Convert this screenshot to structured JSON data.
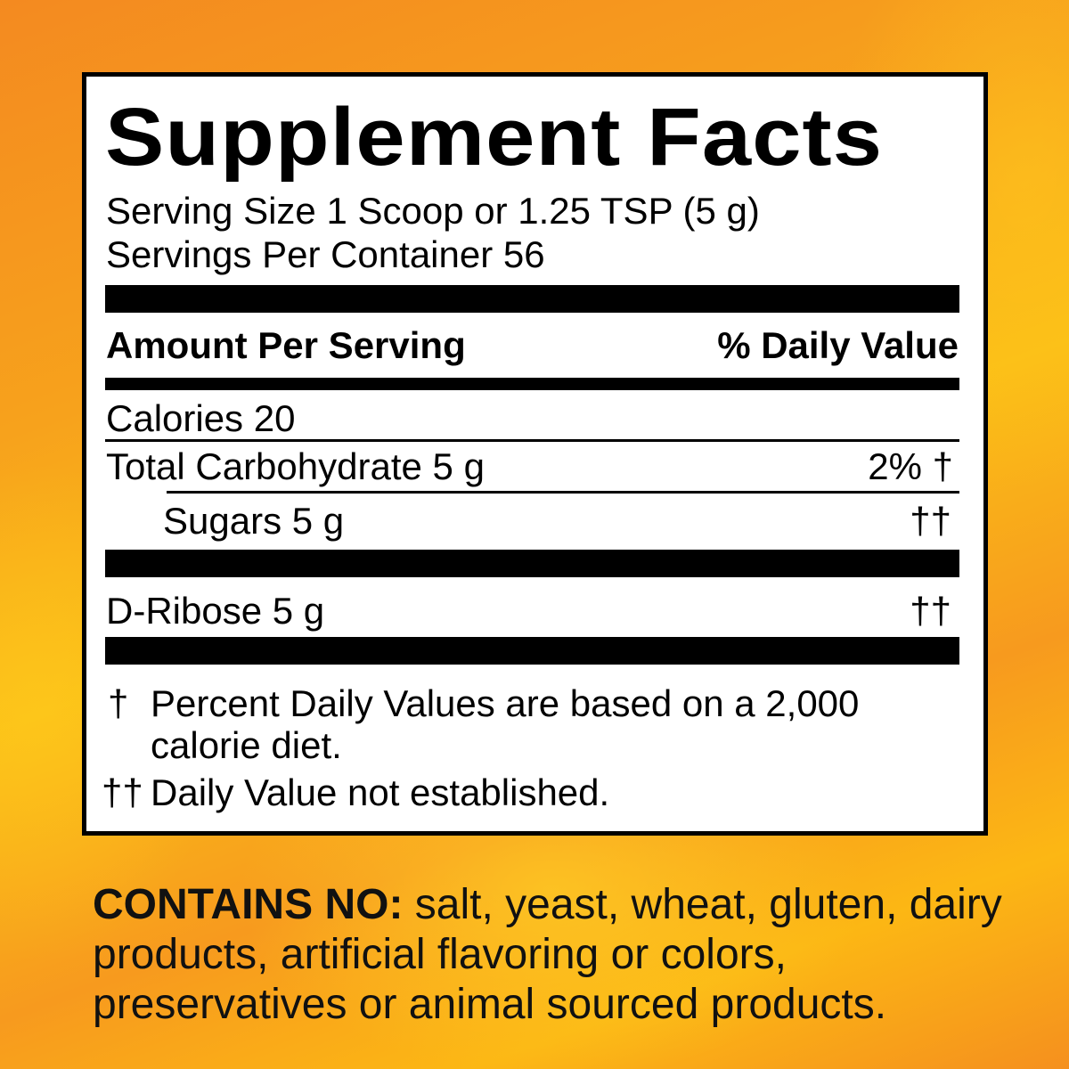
{
  "label": {
    "title": "Supplement Facts",
    "serving_size": "Serving Size 1 Scoop or 1.25 TSP (5 g)",
    "servings_per_container": "Servings Per Container 56",
    "header_left": "Amount Per Serving",
    "header_right": "% Daily Value",
    "rows": [
      {
        "name": "Calories 20",
        "dv": ""
      },
      {
        "name": "Total Carbohydrate 5 g",
        "dv": "2% †"
      },
      {
        "name": "Sugars 5 g",
        "dv": "††"
      },
      {
        "name": "D-Ribose 5 g",
        "dv": "††"
      }
    ],
    "footnotes": [
      {
        "mark": "†",
        "text": "Percent Daily Values are based on a 2,000",
        "text2": "calorie diet."
      },
      {
        "mark": "††",
        "text": "Daily Value not established."
      }
    ]
  },
  "contains": {
    "heading": "CONTAINS NO:",
    "text": " salt, yeast, wheat, gluten, dairy products, artificial flavoring or colors, preservatives or animal sourced products."
  },
  "colors": {
    "background": "#f7a21c",
    "panel": "#ffffff",
    "ink": "#000000"
  }
}
